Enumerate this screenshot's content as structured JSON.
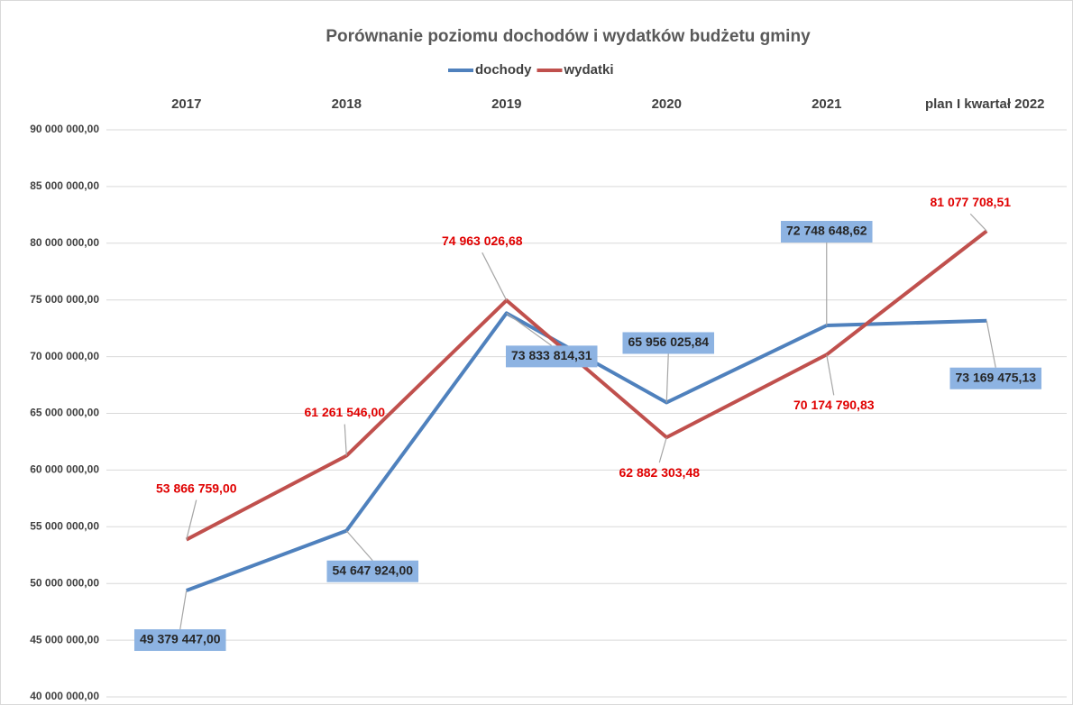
{
  "chart_data": {
    "type": "line",
    "title": "Porównanie poziomu dochodów i wydatków budżetu gminy",
    "categories": [
      "2017",
      "2018",
      "2019",
      "2020",
      "2021",
      "plan I kwartał 2022"
    ],
    "series": [
      {
        "name": "dochody",
        "color": "#4f81bd",
        "values": [
          49379447.0,
          54647924.0,
          73833814.31,
          65956025.84,
          72748648.62,
          73169475.13
        ],
        "value_labels": [
          "49 379 447,00",
          "54 647 924,00",
          "73 833 814,31",
          "65 956 025,84",
          "72 748 648,62",
          "73 169 475,13"
        ]
      },
      {
        "name": "wydatki",
        "color": "#c0504d",
        "values": [
          53866759.0,
          61261546.0,
          74963026.68,
          62882303.48,
          70174790.83,
          81077708.51
        ],
        "value_labels": [
          "53 866 759,00",
          "61 261 546,00",
          "74 963 026,68",
          "62 882 303,48",
          "70 174 790,83",
          "81 077 708,51"
        ]
      }
    ],
    "ylim": [
      40000000,
      90000000
    ],
    "yticks": [
      {
        "value": 40000000,
        "label": "40 000 000,00"
      },
      {
        "value": 45000000,
        "label": "45 000 000,00"
      },
      {
        "value": 50000000,
        "label": "50 000 000,00"
      },
      {
        "value": 55000000,
        "label": "55 000 000,00"
      },
      {
        "value": 60000000,
        "label": "60 000 000,00"
      },
      {
        "value": 65000000,
        "label": "65 000 000,00"
      },
      {
        "value": 70000000,
        "label": "70 000 000,00"
      },
      {
        "value": 75000000,
        "label": "75 000 000,00"
      },
      {
        "value": 80000000,
        "label": "80 000 000,00"
      },
      {
        "value": 85000000,
        "label": "85 000 000,00"
      },
      {
        "value": 90000000,
        "label": "90 000 000,00"
      }
    ],
    "grid": true,
    "legend": "top"
  }
}
